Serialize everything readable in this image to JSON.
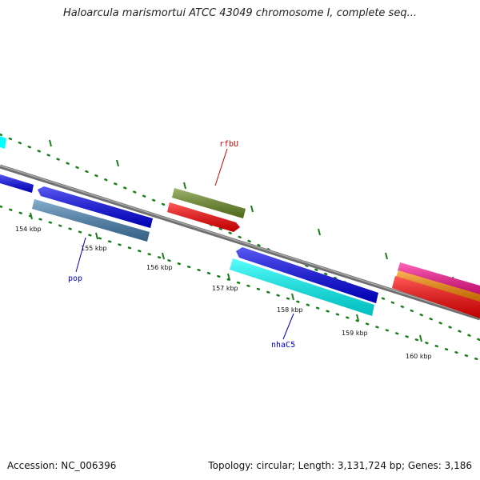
{
  "title": "Haloarcula marismortui ATCC 43049 chromosome I, complete seq...",
  "footer": {
    "accession": "Accession: NC_006396",
    "summary": "Topology: circular; Length: 3,131,724 bp; Genes: 3,186"
  },
  "colors": {
    "backbone": "#808080",
    "tick": "#1a7f1a",
    "label_red": "#cc0000",
    "label_blue": "#0000cc"
  },
  "ticks": [
    {
      "label": "154 kbp"
    },
    {
      "label": "155 kbp"
    },
    {
      "label": "156 kbp"
    },
    {
      "label": "157 kbp"
    },
    {
      "label": "158 kbp"
    },
    {
      "label": "159 kbp"
    },
    {
      "label": "160 kbp"
    }
  ],
  "genes": [
    {
      "name": "rfbU",
      "color": "#6b8e23"
    },
    {
      "name": "pop",
      "color": "#4682b4"
    },
    {
      "name": "nhaC5",
      "color": "#00ffff"
    }
  ],
  "feature_colors": [
    "#0000ff",
    "#ff0000",
    "#ff1493",
    "#ff8c00",
    "#00ffff"
  ]
}
